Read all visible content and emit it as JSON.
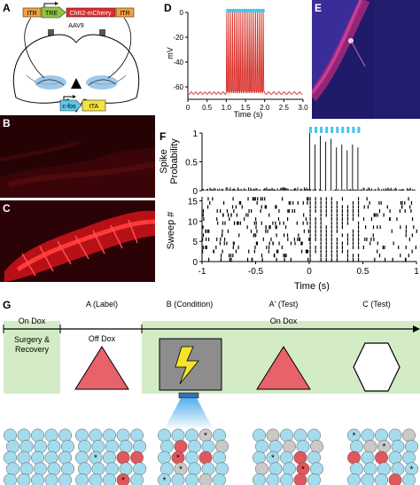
{
  "panels": {
    "A": {
      "label": "A",
      "construct_top": [
        "ITR",
        "TRE",
        "ChR2-mCherry",
        "ITR"
      ],
      "virus": "AAV9",
      "construct_bottom": [
        "c-fos",
        "tTA"
      ]
    },
    "B": {
      "label": "B"
    },
    "C": {
      "label": "C"
    },
    "D": {
      "label": "D",
      "ylabel": "mV",
      "xlabel": "Time (s)",
      "yticks": [
        "0",
        "-20",
        "-40",
        "-60"
      ],
      "xticks": [
        "0",
        "0.5",
        "1.0",
        "1.5",
        "2.0",
        "2.5",
        "3.0"
      ]
    },
    "E": {
      "label": "E"
    },
    "F": {
      "label": "F",
      "ylabel_top": [
        "Spike",
        "Probability"
      ],
      "ylabel_bottom": "Sweep #",
      "xlabel": "Time (s)",
      "xticks": [
        "-1",
        "-0.5",
        "0",
        "0.5",
        "1"
      ],
      "yticks_top": [
        "1",
        "0.5",
        "0"
      ],
      "yticks_bottom": [
        "15",
        "10",
        "5",
        "0"
      ]
    },
    "G": {
      "label": "G",
      "on_dox_left": "On Dox",
      "surgery": [
        "Surgery &",
        "Recovery"
      ],
      "phase_labels": [
        "A (Label)",
        "B (Condition)",
        "A' (Test)",
        "C (Test)"
      ],
      "off_dox": "Off Dox",
      "on_dox_right": "On Dox"
    }
  },
  "colors": {
    "red_marker": "#e0575e",
    "dox_green": "#d3ecc6",
    "cell_blue": "#a4dcee",
    "light_blue": "#43c6ec",
    "trace_red": "#d62a22",
    "fluor_red": "#e8151b"
  },
  "chart_data": [
    {
      "panel": "D",
      "type": "line",
      "xlabel": "Time (s)",
      "ylabel": "mV",
      "xlim": [
        0,
        3.0
      ],
      "ylim": [
        -70,
        0
      ],
      "resting_mV": -65,
      "spike_peak_mV": 0,
      "stim_start_s": 1.0,
      "stim_end_s": 2.0,
      "spike_times_s": [
        1.0,
        1.05,
        1.1,
        1.15,
        1.2,
        1.25,
        1.3,
        1.35,
        1.4,
        1.45,
        1.5,
        1.55,
        1.6,
        1.65,
        1.7,
        1.75,
        1.8,
        1.85,
        1.9,
        1.95
      ]
    },
    {
      "panel": "F-top",
      "type": "bar",
      "xlabel": "Time (s)",
      "ylabel": "Spike Probability",
      "xlim": [
        -1,
        1
      ],
      "ylim": [
        0,
        1
      ],
      "stim_times_s": [
        0,
        0.05,
        0.1,
        0.15,
        0.2,
        0.25,
        0.3,
        0.35,
        0.4,
        0.45
      ],
      "evoked_peak_probability": [
        1.0,
        0.8,
        0.95,
        0.85,
        0.9,
        0.75,
        0.8,
        0.7,
        0.8,
        0.75
      ],
      "baseline_probability": 0.06
    },
    {
      "panel": "F-bottom",
      "type": "scatter",
      "xlabel": "Time (s)",
      "ylabel": "Sweep #",
      "xlim": [
        -1,
        1
      ],
      "ylim": [
        0,
        16
      ],
      "sweeps": 16
    }
  ]
}
